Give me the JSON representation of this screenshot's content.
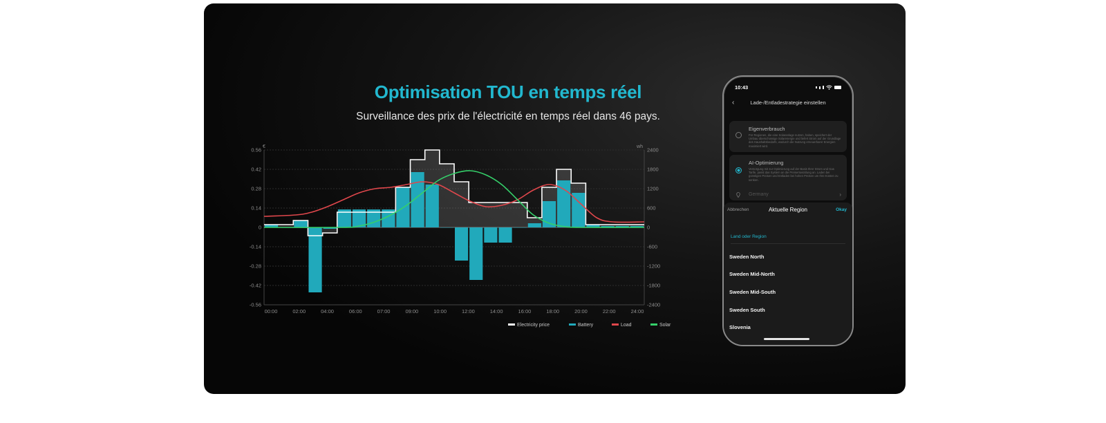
{
  "banner": {
    "title": "Optimisation TOU en temps réel",
    "subtitle": "Surveillance des prix de l'électricité en temps réel dans 46 pays.",
    "accent_color": "#22b8cf"
  },
  "chart_data": {
    "type": "bar",
    "title": "",
    "left_axis_unit": "€",
    "right_axis_unit": "wh",
    "x_ticks": [
      "00:00",
      "02:00",
      "04:00",
      "06:00",
      "07:00",
      "09:00",
      "10:00",
      "12:00",
      "14:00",
      "16:00",
      "18:00",
      "20:00",
      "22:00",
      "24:00"
    ],
    "y_left_ticks": [
      "0.56",
      "0.42",
      "0.28",
      "0.14",
      "0",
      "-0.14",
      "-0.28",
      "-0.42",
      "-0.56"
    ],
    "y_right_ticks": [
      "2400",
      "1800",
      "1200",
      "600",
      "0",
      "-600",
      "-1200",
      "-1800",
      "-2400"
    ],
    "ylim_left": [
      -0.56,
      0.56
    ],
    "ylim_right": [
      -2400,
      2400
    ],
    "xlim_hours": [
      0,
      24
    ],
    "grid": true,
    "legend_position": "bottom-right",
    "series": [
      {
        "name": "Electricity price",
        "kind": "step",
        "color": "#ffffff",
        "values": [
          0.02,
          0.02,
          0.05,
          -0.06,
          -0.04,
          0.11,
          0.11,
          0.11,
          0.11,
          0.29,
          0.49,
          0.56,
          0.46,
          0.33,
          0.18,
          0.18,
          0.18,
          0.18,
          0.07,
          0.29,
          0.42,
          0.32,
          0.02,
          0.02,
          0.02,
          0.02
        ]
      },
      {
        "name": "Battery",
        "kind": "bar",
        "color": "#21a9bb",
        "values": [
          0.02,
          0.0,
          0.05,
          -0.47,
          -0.01,
          0.13,
          0.13,
          0.13,
          0.13,
          0.29,
          0.4,
          0.31,
          0.0,
          -0.24,
          -0.38,
          -0.11,
          -0.11,
          0.0,
          0.03,
          0.19,
          0.34,
          0.25,
          0.02,
          0.01,
          0.01,
          0.01
        ]
      },
      {
        "name": "Load",
        "kind": "line",
        "color": "#e0474c",
        "points": [
          [
            0,
            0.08
          ],
          [
            2,
            0.09
          ],
          [
            3,
            0.11
          ],
          [
            4,
            0.15
          ],
          [
            5,
            0.2
          ],
          [
            6,
            0.25
          ],
          [
            7,
            0.28
          ],
          [
            8,
            0.29
          ],
          [
            9,
            0.31
          ],
          [
            10,
            0.33
          ],
          [
            11,
            0.31
          ],
          [
            12,
            0.25
          ],
          [
            13,
            0.19
          ],
          [
            14,
            0.15
          ],
          [
            15,
            0.16
          ],
          [
            16,
            0.2
          ],
          [
            17,
            0.27
          ],
          [
            18,
            0.31
          ],
          [
            19,
            0.27
          ],
          [
            20,
            0.17
          ],
          [
            21,
            0.07
          ],
          [
            22,
            0.04
          ],
          [
            24,
            0.04
          ]
        ]
      },
      {
        "name": "Solar",
        "kind": "line",
        "color": "#35d06a",
        "points": [
          [
            0,
            0
          ],
          [
            5,
            0.0
          ],
          [
            6,
            0.01
          ],
          [
            7,
            0.04
          ],
          [
            8,
            0.09
          ],
          [
            9,
            0.16
          ],
          [
            10,
            0.25
          ],
          [
            11,
            0.34
          ],
          [
            12,
            0.39
          ],
          [
            13,
            0.41
          ],
          [
            14,
            0.38
          ],
          [
            15,
            0.31
          ],
          [
            16,
            0.2
          ],
          [
            17,
            0.09
          ],
          [
            18,
            0.03
          ],
          [
            19,
            0.005
          ],
          [
            20,
            0
          ],
          [
            24,
            0
          ]
        ]
      }
    ],
    "legend": [
      {
        "name": "Electricity price",
        "color": "#ffffff"
      },
      {
        "name": "Battery",
        "color": "#21a9bb"
      },
      {
        "name": "Load",
        "color": "#e0474c"
      },
      {
        "name": "Solar",
        "color": "#35d06a"
      }
    ]
  },
  "phone": {
    "time": "10:43",
    "header_title": "Lade-/Entladestrategie einstellen",
    "option1": {
      "title": "Eigenverbrauch",
      "text": "Für Regionen, die eine Solaranlage nutzen, haben, speichert der Umbau überschüssige Solarenergie und liefert Strom auf der Grundlage des Haushaltsbedarfs, wodurch die Nutzung erneuerbarer Energien maximiert wird."
    },
    "option2": {
      "title": "AI-Optimierung",
      "text": "Versorgung mit zur Optimierung auf der Basis Ihrer Strom und Gas Tarife, passt das System an die Preisentwicklung an. Laden bei günstigen Preisen und Entladen bei hohen Preisen um Ihre Kosten zu senken.",
      "country": "Germany"
    },
    "sheet": {
      "cancel_label": "Abbrechen",
      "title": "Aktuelle Region",
      "ok_label": "Okay",
      "section_label": "Land oder Region",
      "regions": [
        "Sweden North",
        "Sweden Mid-North",
        "Sweden Mid-South",
        "Sweden South",
        "Slovenia"
      ]
    }
  }
}
